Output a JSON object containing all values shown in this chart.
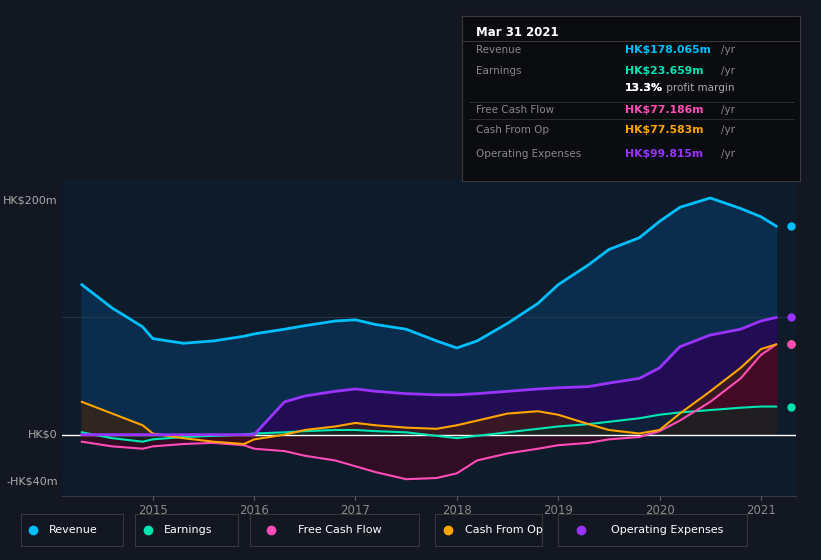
{
  "bg_color": "#131722",
  "plot_bg_color": "#131722",
  "chart_bg_color": "#0d1b2a",
  "grid_color": "#2a3a4a",
  "zero_line_color": "#ffffff",
  "x_years": [
    2014.3,
    2014.6,
    2014.9,
    2015.0,
    2015.3,
    2015.6,
    2015.9,
    2016.0,
    2016.3,
    2016.5,
    2016.8,
    2017.0,
    2017.2,
    2017.5,
    2017.8,
    2018.0,
    2018.2,
    2018.5,
    2018.8,
    2019.0,
    2019.3,
    2019.5,
    2019.8,
    2020.0,
    2020.2,
    2020.5,
    2020.8,
    2021.0,
    2021.15
  ],
  "revenue": [
    128,
    108,
    92,
    82,
    78,
    80,
    84,
    86,
    90,
    93,
    97,
    98,
    94,
    90,
    80,
    74,
    80,
    95,
    112,
    128,
    145,
    158,
    168,
    182,
    194,
    202,
    193,
    186,
    178
  ],
  "earnings": [
    2,
    -3,
    -6,
    -4,
    -2,
    -1,
    0,
    1,
    2,
    3,
    4,
    4,
    3,
    2,
    -1,
    -3,
    -1,
    2,
    5,
    7,
    9,
    11,
    14,
    17,
    19,
    21,
    23,
    24,
    24
  ],
  "free_cash_flow": [
    -6,
    -10,
    -12,
    -10,
    -8,
    -7,
    -9,
    -12,
    -14,
    -18,
    -22,
    -27,
    -32,
    -38,
    -37,
    -33,
    -22,
    -16,
    -12,
    -9,
    -7,
    -4,
    -2,
    3,
    12,
    28,
    48,
    68,
    77
  ],
  "cash_from_op": [
    28,
    18,
    8,
    1,
    -3,
    -6,
    -8,
    -4,
    0,
    4,
    7,
    10,
    8,
    6,
    5,
    8,
    12,
    18,
    20,
    17,
    9,
    4,
    1,
    4,
    18,
    37,
    57,
    73,
    77
  ],
  "operating_expenses": [
    0,
    0,
    0,
    0,
    0,
    0,
    0,
    0,
    28,
    33,
    37,
    39,
    37,
    35,
    34,
    34,
    35,
    37,
    39,
    40,
    41,
    44,
    48,
    57,
    75,
    85,
    90,
    97,
    100
  ],
  "revenue_color": "#00bfff",
  "earnings_color": "#00e6b3",
  "fcf_color": "#ff4db8",
  "cashop_color": "#ffa500",
  "opex_color": "#9933ff",
  "revenue_fill": "#0a3d6b",
  "earnings_fill": "#003322",
  "fcf_fill": "#4d0022",
  "cashop_fill": "#4d2200",
  "opex_fill": "#2d0057",
  "ylabel_200": "HK$200m",
  "ylabel_0": "HK$0",
  "ylabel_neg40": "-HK$40m",
  "ylim_min": -52,
  "ylim_max": 218,
  "xlim_min": 2014.1,
  "xlim_max": 2021.35,
  "x_ticks": [
    2015,
    2016,
    2017,
    2018,
    2019,
    2020,
    2021
  ],
  "info_title": "Mar 31 2021",
  "info_rows": [
    {
      "label": "Revenue",
      "value": "HK$178.065m",
      "unit": "/yr",
      "color": "#00bfff",
      "sep_after": false
    },
    {
      "label": "Earnings",
      "value": "HK$23.659m",
      "unit": "/yr",
      "color": "#00e6b3",
      "sep_after": false
    },
    {
      "label": "",
      "value": "13.3%",
      "unit": " profit margin",
      "color": "#ffffff",
      "sep_after": true
    },
    {
      "label": "Free Cash Flow",
      "value": "HK$77.186m",
      "unit": "/yr",
      "color": "#ff4db8",
      "sep_after": false
    },
    {
      "label": "Cash From Op",
      "value": "HK$77.583m",
      "unit": "/yr",
      "color": "#ffa500",
      "sep_after": false
    },
    {
      "label": "Operating Expenses",
      "value": "HK$99.815m",
      "unit": "/yr",
      "color": "#9933ff",
      "sep_after": false
    }
  ],
  "legend_items": [
    {
      "label": "Revenue",
      "color": "#00bfff"
    },
    {
      "label": "Earnings",
      "color": "#00e6b3"
    },
    {
      "label": "Free Cash Flow",
      "color": "#ff4db8"
    },
    {
      "label": "Cash From Op",
      "color": "#ffa500"
    },
    {
      "label": "Operating Expenses",
      "color": "#9933ff"
    }
  ],
  "dot_items": [
    {
      "key": "revenue",
      "y": 178,
      "color": "#00bfff"
    },
    {
      "key": "opex",
      "y": 100,
      "color": "#9933ff"
    },
    {
      "key": "cashop",
      "y": 77,
      "color": "#ffa500"
    },
    {
      "key": "fcf",
      "y": 77,
      "color": "#ff4db8"
    },
    {
      "key": "earnings",
      "y": 24,
      "color": "#00e6b3"
    }
  ]
}
